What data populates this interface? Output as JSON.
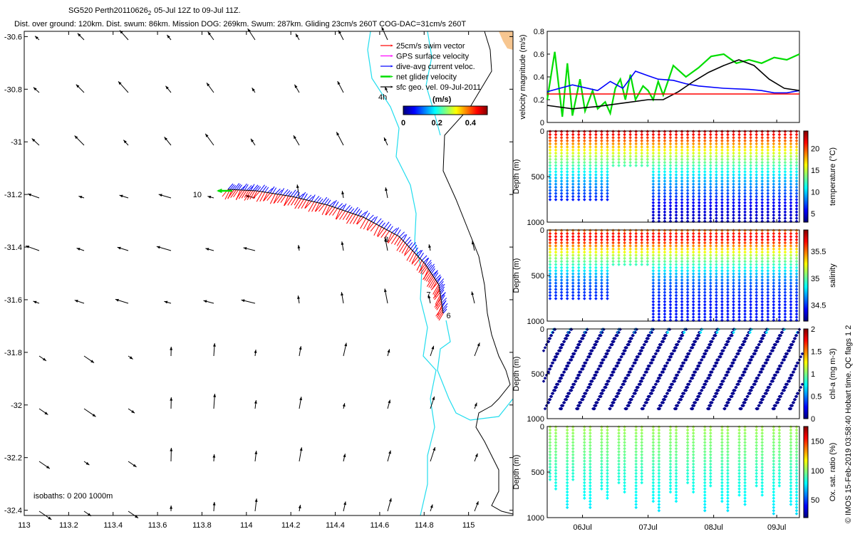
{
  "header": {
    "line1_main": "SG520 Perth20110626",
    "line1_sub": "2",
    "line1_rest": "05-Jul 12Z to 09-Jul 11Z.",
    "line2": "Dist. over ground: 120km. Dist. swum: 86km. Mission DOG: 269km. Swum: 287km. Gliding 23cm/s 260T COG-DAC=31cm/s 260T"
  },
  "colors": {
    "swim": "#ff0000",
    "gps": "#ff00ff",
    "dac": "#0000ff",
    "net": "#00dd00",
    "sfc": "#000000",
    "coast": "#22ddee",
    "isobath": "#000000",
    "land": "#f7c690",
    "threshold": "#ff0000"
  },
  "legend": {
    "items": [
      {
        "label": "25cm/s swim vector",
        "color": "#ff0000"
      },
      {
        "label": "GPS surface velocity",
        "color": "#ff00ff"
      },
      {
        "label": "dive-avg current veloc.",
        "color": "#0000ff"
      },
      {
        "label": "net glider velocity",
        "color": "#00dd00"
      },
      {
        "label": "sfc geo. vel. 09-Jul-2011",
        "color": "#000000"
      }
    ],
    "colorbar_unit": "(m/s)",
    "colorbar_ticks": [
      "0",
      "0.2",
      "0.4"
    ],
    "colorbar_range": [
      0,
      0.5
    ],
    "colormap": "jet"
  },
  "map": {
    "lon_range": [
      113.0,
      115.2
    ],
    "lat_range": [
      -32.42,
      -30.58
    ],
    "x_ticks": [
      "113",
      "113.2",
      "113.4",
      "113.6",
      "113.8",
      "114",
      "114.2",
      "114.4",
      "114.6",
      "114.8",
      "115"
    ],
    "y_ticks": [
      "-30.6",
      "-30.8",
      "-31",
      "-31.2",
      "-31.4",
      "-31.6",
      "-31.8",
      "-32",
      "-32.2",
      "-32.4"
    ],
    "isobath_note": "isobaths: 0   200   1000m",
    "label_4h": "4h",
    "track_labels": [
      {
        "text": "10",
        "lon": 113.83,
        "lat": -31.2
      },
      {
        "text": "8",
        "lon": 114.62,
        "lat": -31.37
      },
      {
        "text": "7",
        "lon": 114.81,
        "lat": -31.58
      },
      {
        "text": "6",
        "lon": 114.9,
        "lat": -31.66
      }
    ]
  },
  "chart_data": [
    {
      "type": "line",
      "ylabel": "velocity magnitude (m/s)",
      "ylim": [
        0,
        0.8
      ],
      "y_ticks": [
        "0",
        "0.2",
        "0.4",
        "0.6",
        "0.8"
      ],
      "threshold": 0.25,
      "series": [
        {
          "color": "#00dd00",
          "x": [
            0,
            0.03,
            0.06,
            0.08,
            0.1,
            0.13,
            0.15,
            0.18,
            0.2,
            0.23,
            0.25,
            0.27,
            0.29,
            0.31,
            0.33,
            0.35,
            0.38,
            0.4,
            0.42,
            0.44,
            0.46,
            0.5,
            0.55,
            0.6,
            0.65,
            0.7,
            0.75,
            0.8,
            0.85,
            0.9,
            0.95,
            1.0
          ],
          "values": [
            0.2,
            0.62,
            0.05,
            0.52,
            0.06,
            0.38,
            0.1,
            0.28,
            0.12,
            0.18,
            0.08,
            0.3,
            0.38,
            0.2,
            0.42,
            0.2,
            0.32,
            0.28,
            0.2,
            0.36,
            0.24,
            0.5,
            0.4,
            0.48,
            0.58,
            0.6,
            0.52,
            0.55,
            0.52,
            0.57,
            0.55,
            0.6
          ]
        },
        {
          "color": "#0000ff",
          "x": [
            0,
            0.1,
            0.2,
            0.25,
            0.3,
            0.35,
            0.4,
            0.44,
            0.5,
            0.55,
            0.6,
            0.7,
            0.8,
            0.85,
            0.9,
            0.95,
            1.0
          ],
          "values": [
            0.27,
            0.33,
            0.28,
            0.36,
            0.3,
            0.45,
            0.41,
            0.38,
            0.37,
            0.34,
            0.32,
            0.3,
            0.29,
            0.28,
            0.26,
            0.26,
            0.28
          ]
        },
        {
          "color": "#000000",
          "x": [
            0,
            0.1,
            0.2,
            0.3,
            0.4,
            0.46,
            0.52,
            0.58,
            0.64,
            0.7,
            0.76,
            0.82,
            0.88,
            0.94,
            1.0
          ],
          "values": [
            0.15,
            0.12,
            0.14,
            0.17,
            0.2,
            0.2,
            0.27,
            0.36,
            0.44,
            0.5,
            0.55,
            0.5,
            0.38,
            0.3,
            0.28
          ]
        }
      ]
    },
    {
      "type": "scatter",
      "ylabel": "Depth (m)",
      "ylim": [
        0,
        1000
      ],
      "y_ticks": [
        "0",
        "500",
        "1000"
      ],
      "cbar_label": "temperature (°C)",
      "cbar_range": [
        3,
        24
      ],
      "cbar_ticks": [
        "5",
        "10",
        "15",
        "20"
      ],
      "profile": [
        [
          0,
          22
        ],
        [
          50,
          21
        ],
        [
          100,
          19.5
        ],
        [
          150,
          18
        ],
        [
          200,
          16.5
        ],
        [
          300,
          14
        ],
        [
          400,
          12
        ],
        [
          500,
          10
        ],
        [
          600,
          8.5
        ],
        [
          700,
          7
        ],
        [
          800,
          5.5
        ],
        [
          900,
          4.8
        ],
        [
          1000,
          4.2
        ]
      ]
    },
    {
      "type": "scatter",
      "ylabel": "Depth (m)",
      "ylim": [
        0,
        1000
      ],
      "y_ticks": [
        "0",
        "500",
        "1000"
      ],
      "cbar_label": "salinity",
      "cbar_range": [
        34.2,
        35.9
      ],
      "cbar_ticks": [
        "34.5",
        "35",
        "35.5"
      ],
      "profile": [
        [
          0,
          35.45
        ],
        [
          40,
          35.65
        ],
        [
          100,
          35.7
        ],
        [
          150,
          35.55
        ],
        [
          200,
          35.35
        ],
        [
          300,
          35.1
        ],
        [
          400,
          34.9
        ],
        [
          500,
          34.7
        ],
        [
          600,
          34.55
        ],
        [
          800,
          34.45
        ],
        [
          1000,
          34.45
        ]
      ]
    },
    {
      "type": "scatter",
      "ylabel": "Depth (m)",
      "ylim": [
        0,
        1000
      ],
      "y_ticks": [
        "0",
        "500",
        "1000"
      ],
      "cbar_label": "chl-a (mg m-3)",
      "cbar_range": [
        0,
        2
      ],
      "cbar_ticks": [
        "0",
        "0.5",
        "1",
        "1.5",
        "2"
      ],
      "profile": [
        [
          0,
          0.7
        ],
        [
          30,
          0.5
        ],
        [
          80,
          0.2
        ],
        [
          150,
          0.05
        ],
        [
          1000,
          0.02
        ]
      ]
    },
    {
      "type": "scatter",
      "ylabel": "Depth (m)",
      "ylim": [
        0,
        1000
      ],
      "y_ticks": [
        "0",
        "500",
        "1000"
      ],
      "cbar_label": "Ox. sat. ratio (%)",
      "cbar_range": [
        20,
        175
      ],
      "cbar_ticks": [
        "50",
        "100",
        "150"
      ],
      "profile": [
        [
          0,
          105
        ],
        [
          100,
          100
        ],
        [
          300,
          95
        ],
        [
          500,
          85
        ],
        [
          700,
          80
        ],
        [
          900,
          75
        ],
        [
          1000,
          72
        ]
      ]
    }
  ],
  "time_axis": {
    "ticks": [
      "06Jul",
      "07Jul",
      "08Jul",
      "09Jul"
    ],
    "tick_positions": [
      0.14,
      0.4,
      0.66,
      0.91
    ]
  },
  "credit": "© IMOS 15-Feb-2019 03:58:40 Hobart time. QC flags 1  2"
}
